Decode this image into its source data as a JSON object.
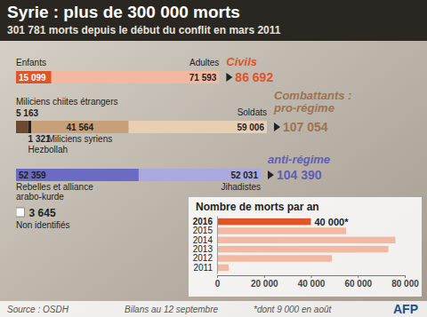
{
  "title": "Syrie : plus de 300 000 morts",
  "subtitle": "301 781 morts depuis le début du conflit en mars 2011",
  "chart_data": [
    {
      "type": "bar",
      "orientation": "horizontal",
      "stacked": true,
      "data_labels": true,
      "tick_labels": false,
      "groups": [
        {
          "name": "Civils",
          "color": "#e0542a",
          "total": 86692,
          "total_label": "86 692",
          "segments": [
            {
              "name": "Enfants",
              "value": 15099,
              "value_label": "15 099",
              "color": "#e0542a"
            },
            {
              "name": "Adultes",
              "value": 71593,
              "value_label": "71 593",
              "color": "#f2b9a1"
            }
          ]
        },
        {
          "heading": "Combattants :",
          "name": "pro-régime",
          "color": "#9c7352",
          "total": 107054,
          "total_label": "107 054",
          "segments": [
            {
              "name": "Miliciens chiites étrangers",
              "value": 5163,
              "value_label": "5 163",
              "color": "#6b4a32"
            },
            {
              "name": "Hezbollah",
              "value": 1321,
              "value_label": "1 321",
              "color": "#2b1e14"
            },
            {
              "name": "Miliciens syriens",
              "value": 41564,
              "value_label": "41 564",
              "color": "#c79f78"
            },
            {
              "name": "Soldats",
              "value": 59006,
              "value_label": "59 006",
              "color": "#e8cfb4"
            }
          ]
        },
        {
          "name": "anti-régime",
          "color": "#5e5eb8",
          "total": 104390,
          "total_label": "104 390",
          "segments": [
            {
              "name": "Rebelles et alliance arabo-kurde",
              "value": 52359,
              "value_label": "52 359",
              "color": "#6b6bc4"
            },
            {
              "name": "Jihadistes",
              "value": 52031,
              "value_label": "52 031",
              "color": "#a9a9e0"
            }
          ]
        }
      ],
      "unidentified": {
        "name": "Non identifiés",
        "value": 3645,
        "value_label": "3 645",
        "color": "#ffffff"
      }
    },
    {
      "type": "bar",
      "orientation": "horizontal",
      "title": "Nombre de morts par an",
      "categories": [
        "2016",
        "2015",
        "2014",
        "2013",
        "2012",
        "2011"
      ],
      "values": [
        40000,
        55000,
        76000,
        73000,
        49000,
        5000
      ],
      "colors": [
        "#e0542a",
        "#f3b8a2",
        "#f3b8a2",
        "#f3b8a2",
        "#f3b8a2",
        "#f3b8a2"
      ],
      "value_labels": [
        "40 000*",
        null,
        null,
        null,
        null,
        null
      ],
      "xlim": [
        0,
        80000
      ],
      "xticks": [
        0,
        {
          "value": 20000,
          "label": "20 000"
        },
        {
          "value": 40000,
          "label": "40 000"
        },
        {
          "value": 60000,
          "label": "60 000"
        },
        {
          "value": 80000,
          "label": "80 000"
        }
      ]
    }
  ],
  "footer": {
    "source": "Source : OSDH",
    "date": "Bilans au 12 septembre",
    "note": "*dont 9 000 en août",
    "credit": "AFP"
  }
}
